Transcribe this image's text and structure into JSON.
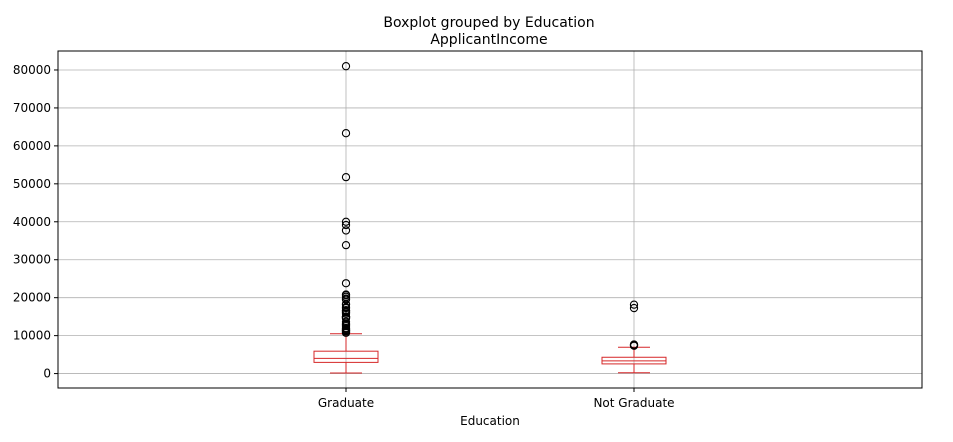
{
  "chart_data": {
    "type": "box",
    "title": "Boxplot grouped by Education",
    "subtitle": "ApplicantIncome",
    "xlabel": "Education",
    "ylabel": "",
    "ylim": [
      -3800,
      85000
    ],
    "yticks": [
      0,
      10000,
      20000,
      30000,
      40000,
      50000,
      60000,
      70000,
      80000
    ],
    "grid": true,
    "box_color": "#d62728",
    "grid_color": "#b0b0b0",
    "categories": [
      "Graduate",
      "Not Graduate"
    ],
    "boxes": [
      {
        "category": "Graduate",
        "whisker_low": 150,
        "q1": 2950,
        "median": 4000,
        "q3": 5900,
        "whisker_high": 10500,
        "fliers": [
          81000,
          63337,
          51763,
          39999,
          39147,
          37719,
          33846,
          23803,
          20833,
          20667,
          20233,
          19730,
          19484,
          18333,
          18165,
          17500,
          17263,
          16692,
          16666,
          16250,
          16120,
          15759,
          15000,
          14999,
          14880,
          14866,
          14683,
          14583,
          13650,
          13262,
          12876,
          12841,
          12500,
          12000,
          11757,
          11500,
          11417,
          11250,
          11146,
          10833,
          10750
        ]
      },
      {
        "category": "Not Graduate",
        "whisker_low": 210,
        "q1": 2550,
        "median": 3350,
        "q3": 4300,
        "whisker_high": 6950,
        "fliers": [
          18165,
          17263,
          7660,
          7583,
          7451,
          7333
        ]
      }
    ]
  }
}
